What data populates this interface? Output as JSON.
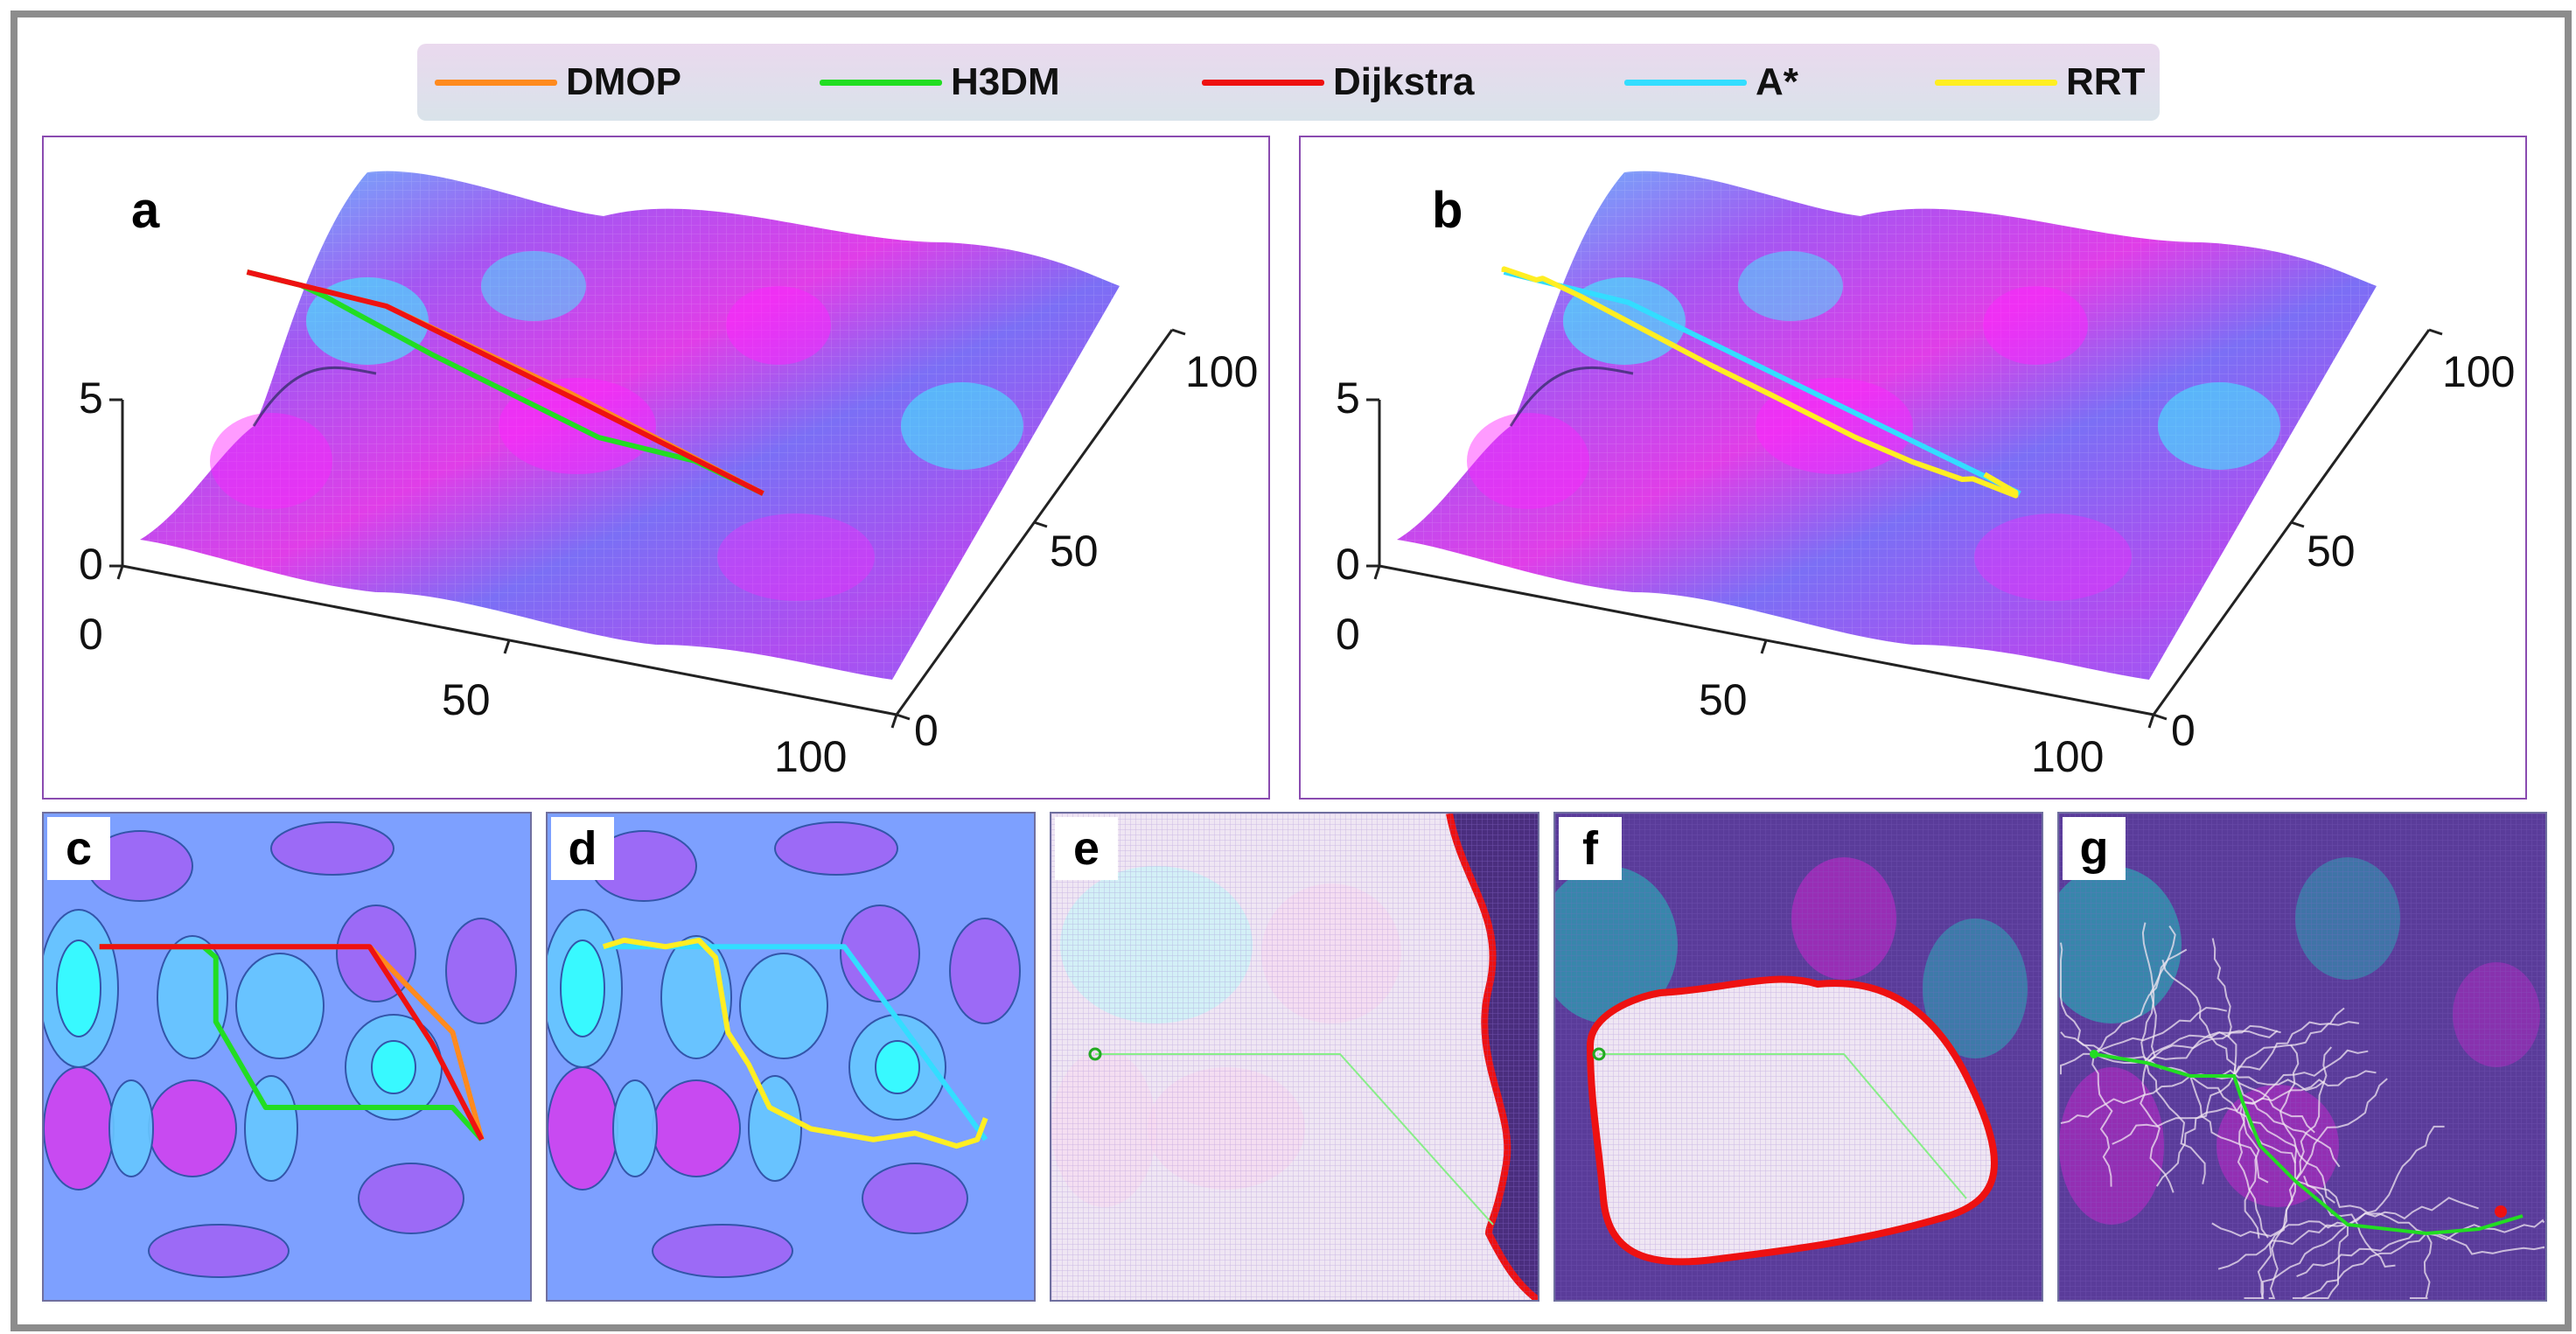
{
  "legend": [
    {
      "label": "DMOP",
      "color": "#ff8a1e"
    },
    {
      "label": "H3DM",
      "color": "#22dd22"
    },
    {
      "label": "Dijkstra",
      "color": "#ee1111"
    },
    {
      "label": "A*",
      "color": "#33ddff"
    },
    {
      "label": "RRT",
      "color": "#ffee22"
    }
  ],
  "panels": {
    "a": {
      "letter": "a"
    },
    "b": {
      "letter": "b"
    },
    "c": {
      "letter": "c"
    },
    "d": {
      "letter": "d"
    },
    "e": {
      "letter": "e"
    },
    "f": {
      "letter": "f"
    },
    "g": {
      "letter": "g"
    }
  },
  "chart_data": {
    "type": "surface",
    "description_labels": "3D terrain surface with planned paths (a, b) and 2D top views (c–g)",
    "axes3d": {
      "z_ticks": [
        "0",
        "5"
      ],
      "x_ticks": [
        "0",
        "50",
        "100"
      ],
      "y_ticks": [
        "0",
        "50",
        "100"
      ],
      "z_range": [
        0,
        5
      ],
      "x_range": [
        0,
        100
      ],
      "y_range": [
        0,
        100
      ]
    },
    "colors": {
      "surface_low": "#a34cf0",
      "surface_high_a": "#ee22ee",
      "surface_high_b": "#22ffff",
      "background_2d": "#7da0ff"
    },
    "series": [
      {
        "name": "DMOP",
        "panel": [
          "a",
          "c"
        ],
        "color": "#ff8a1e",
        "x": [
          5,
          20,
          45,
          70,
          90,
          97
        ],
        "y": [
          5,
          5,
          5,
          5,
          45,
          95
        ]
      },
      {
        "name": "H3DM",
        "panel": [
          "a",
          "c"
        ],
        "color": "#22dd22",
        "x": [
          5,
          18,
          30,
          33,
          33,
          45,
          70,
          90,
          97
        ],
        "y": [
          5,
          5,
          5,
          10,
          40,
          80,
          80,
          80,
          95
        ]
      },
      {
        "name": "Dijkstra",
        "panel": [
          "a",
          "c"
        ],
        "color": "#ee1111",
        "x": [
          5,
          55,
          70,
          85,
          97
        ],
        "y": [
          5,
          5,
          5,
          50,
          95
        ]
      },
      {
        "name": "A*",
        "panel": [
          "b",
          "d"
        ],
        "color": "#33ddff",
        "x": [
          5,
          50,
          63,
          80,
          97
        ],
        "y": [
          5,
          5,
          5,
          50,
          95
        ]
      },
      {
        "name": "RRT",
        "panel": [
          "b",
          "d"
        ],
        "color": "#ffee22",
        "x": [
          5,
          10,
          20,
          28,
          32,
          35,
          40,
          45,
          55,
          70,
          80,
          90,
          95,
          97
        ],
        "y": [
          5,
          2,
          5,
          2,
          10,
          45,
          60,
          80,
          90,
          95,
          92,
          98,
          95,
          85
        ]
      }
    ]
  }
}
